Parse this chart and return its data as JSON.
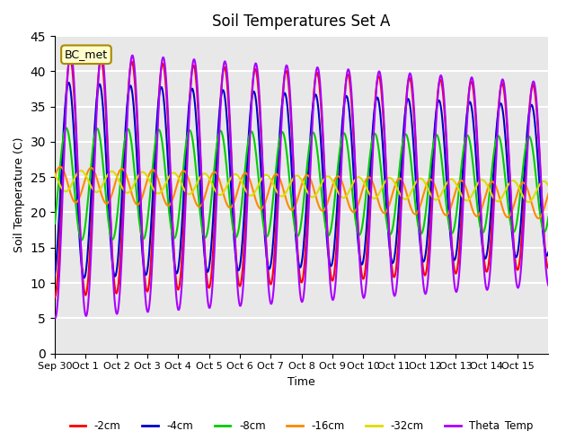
{
  "title": "Soil Temperatures Set A",
  "xlabel": "Time",
  "ylabel": "Soil Temperature (C)",
  "ylim": [
    0,
    45
  ],
  "yticks": [
    0,
    5,
    10,
    15,
    20,
    25,
    30,
    35,
    40,
    45
  ],
  "x_labels": [
    "Sep 30",
    "Oct 1",
    "Oct 2",
    "Oct 3",
    "Oct 4",
    "Oct 5",
    "Oct 6",
    "Oct 7",
    "Oct 8",
    "Oct 9",
    "Oct 10",
    "Oct 11",
    "Oct 12",
    "Oct 13",
    "Oct 14",
    "Oct 15"
  ],
  "series_colors": {
    "-2cm": "#ff0000",
    "-4cm": "#0000cc",
    "-8cm": "#00cc00",
    "-16cm": "#ff8800",
    "-32cm": "#dddd00",
    "Theta_Temp": "#aa00ff"
  },
  "series_linewidth": 1.5,
  "background_color": "#e8e8e8",
  "grid_color": "#ffffff",
  "annotation_text": "BC_met",
  "n_days": 16,
  "pts_per_day": 48
}
